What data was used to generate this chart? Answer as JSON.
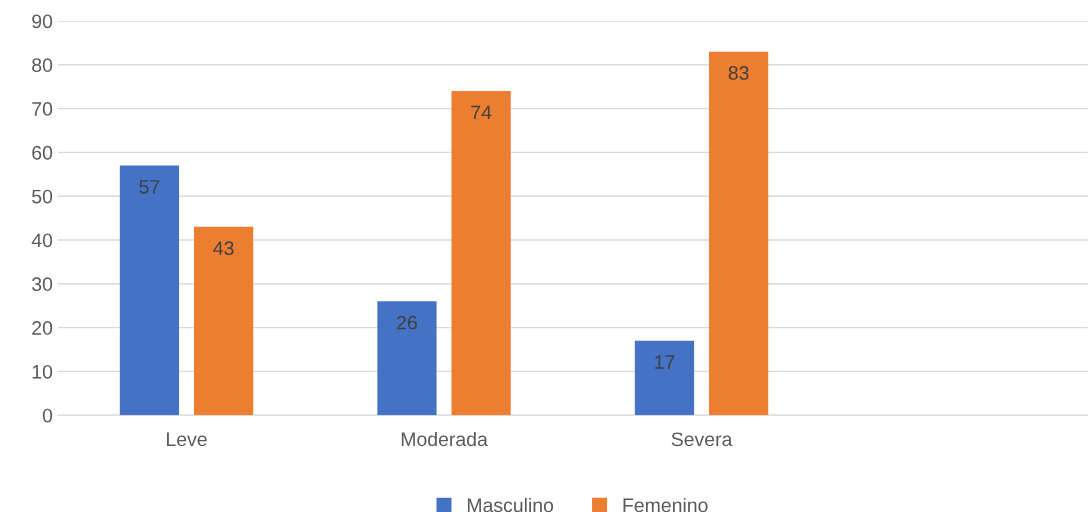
{
  "chart_data": {
    "type": "bar",
    "categories": [
      "Leve",
      "Moderada",
      "Severa",
      null
    ],
    "series": [
      {
        "name": "Masculino",
        "color": "#4472c4",
        "values": [
          57,
          26,
          17,
          null
        ]
      },
      {
        "name": "Femenino",
        "color": "#ed7d31",
        "values": [
          43,
          74,
          83,
          null
        ]
      }
    ],
    "ylim": [
      0,
      90
    ],
    "yticks": [
      0,
      10,
      20,
      30,
      40,
      50,
      60,
      70,
      80,
      90
    ],
    "grid": "y",
    "legend": "bottom",
    "data_labels": true
  }
}
